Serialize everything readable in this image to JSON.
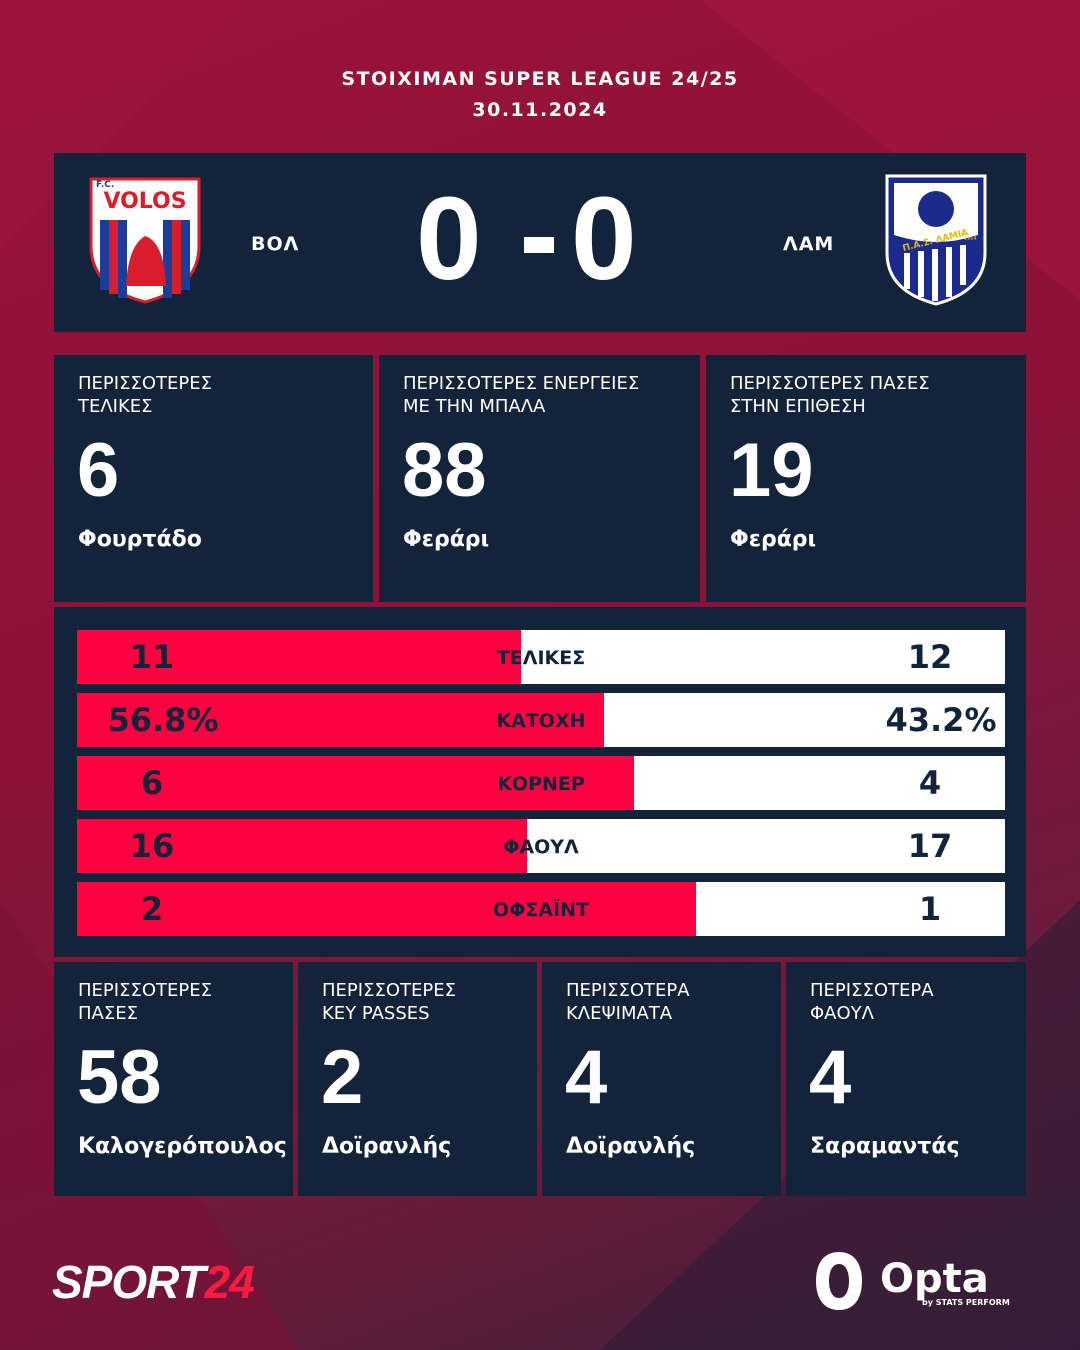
{
  "header": {
    "competition": "STOIXIMAN SUPER LEAGUE 24/25",
    "date": "30.11.2024"
  },
  "match": {
    "home": "ΒΟΛ",
    "away": "ΛΑΜ",
    "home_score": 0,
    "away_score": 0,
    "home_logo": {
      "small": "F.C.",
      "name": "VOLOS"
    },
    "away_logo": {
      "name": "Π.Α.Σ. ΛΑΜΙΑ",
      "year": "1964"
    }
  },
  "top_cards": [
    {
      "label": [
        "ΠΕΡΙΣΣΟΤΕΡΕΣ",
        "ΤΕΛΙΚΕΣ"
      ],
      "value": 6,
      "player": "Φουρτάδο"
    },
    {
      "label": [
        "ΠΕΡΙΣΣΟΤΕΡΕΣ ΕΝΕΡΓΕΙΕΣ",
        "ΜΕ ΤΗΝ ΜΠΑΛΑ"
      ],
      "value": 88,
      "player": "Φεράρι"
    },
    {
      "label": [
        "ΠΕΡΙΣΣΟΤΕΡΕΣ ΠΑΣΕΣ",
        "ΣΤΗΝ ΕΠΙΘΕΣΗ"
      ],
      "value": 19,
      "player": "Φεράρι"
    }
  ],
  "team_stats": [
    {
      "label": "ΤΕΛΙΚΕΣ",
      "home": 11,
      "away": 12
    },
    {
      "label": "ΚΑΤΟΧΗ",
      "home": {
        "value": 56.8,
        "label": "56.8%"
      },
      "away": {
        "value": 43.2,
        "label": "43.2%"
      }
    },
    {
      "label": "ΚΟΡΝΕΡ",
      "home": 6,
      "away": 4
    },
    {
      "label": "ΦΑΟΥΛ",
      "home": 16,
      "away": 17
    },
    {
      "label": "ΟΦΣΑΪΝΤ",
      "home": 2,
      "away": 1
    }
  ],
  "bottom_cards": [
    {
      "label": [
        "ΠΕΡΙΣΣΟΤΕΡΕΣ",
        "ΠΑΣΕΣ"
      ],
      "value": 58,
      "player": "Καλογερόπουλος"
    },
    {
      "label": [
        "ΠΕΡΙΣΣΟΤΕΡΕΣ",
        "KEY PASSES"
      ],
      "value": 2,
      "player": "Δοϊρανλής"
    },
    {
      "label": [
        "ΠΕΡΙΣΣΟΤΕΡΑ",
        "ΚΛΕΨΙΜΑΤΑ"
      ],
      "value": 4,
      "player": "Δοϊρανλής"
    },
    {
      "label": [
        "ΠΕΡΙΣΣΟΤΕΡΑ",
        "ΦΑΟΥΛ"
      ],
      "value": 4,
      "player": "Σαραμαντάς"
    }
  ],
  "footer": {
    "brand": [
      "SPORT",
      "24"
    ],
    "provider": "Opta",
    "provider_sub": "by STATS PERFORM"
  }
}
